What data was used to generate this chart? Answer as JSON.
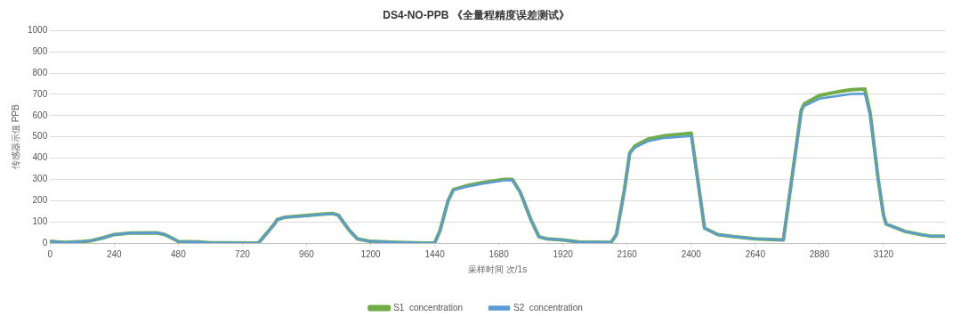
{
  "chart_data": {
    "type": "line",
    "title": "DS4-NO-PPB 《全量程精度误差测试》",
    "xlabel": "采样时间 次/1s",
    "ylabel": "传感器示值 PPB",
    "x": [
      0,
      30,
      60,
      120,
      150,
      200,
      240,
      300,
      400,
      430,
      470,
      480,
      560,
      600,
      780,
      800,
      840,
      850,
      880,
      960,
      1020,
      1060,
      1080,
      1120,
      1150,
      1200,
      1300,
      1410,
      1440,
      1460,
      1490,
      1510,
      1560,
      1620,
      1700,
      1730,
      1760,
      1800,
      1830,
      1860,
      1920,
      1980,
      2100,
      2120,
      2150,
      2170,
      2190,
      2240,
      2300,
      2380,
      2400,
      2450,
      2500,
      2560,
      2640,
      2745,
      2812,
      2823,
      2880,
      2960,
      3000,
      3050,
      3070,
      3100,
      3120,
      3130,
      3200,
      3260,
      3300,
      3345
    ],
    "series": [
      {
        "name": "S1  concentration",
        "color": "#70ad47",
        "values": [
          8,
          5,
          3,
          7,
          10,
          25,
          40,
          47,
          48,
          40,
          15,
          7,
          5,
          1,
          0,
          30,
          90,
          110,
          122,
          130,
          136,
          139,
          130,
          60,
          20,
          8,
          3,
          0,
          1,
          60,
          200,
          252,
          270,
          285,
          300,
          300,
          240,
          110,
          30,
          20,
          15,
          5,
          3,
          40,
          250,
          425,
          458,
          490,
          505,
          515,
          518,
          70,
          40,
          30,
          20,
          15,
          625,
          655,
          695,
          715,
          722,
          725,
          610,
          300,
          130,
          90,
          55,
          40,
          32,
          32
        ]
      },
      {
        "name": "S2  concentration",
        "color": "#5b9bd5",
        "values": [
          8,
          5,
          3,
          7,
          10,
          25,
          40,
          47,
          48,
          40,
          15,
          7,
          5,
          1,
          0,
          30,
          90,
          110,
          122,
          128,
          135,
          138,
          130,
          60,
          20,
          8,
          3,
          0,
          1,
          60,
          200,
          250,
          265,
          280,
          295,
          297,
          240,
          110,
          30,
          20,
          15,
          5,
          3,
          40,
          250,
          420,
          450,
          480,
          495,
          502,
          505,
          70,
          40,
          30,
          20,
          15,
          620,
          645,
          680,
          695,
          702,
          703,
          600,
          300,
          130,
          90,
          55,
          40,
          32,
          32
        ]
      }
    ],
    "xlim": [
      0,
      3350
    ],
    "xticks": [
      0,
      240,
      480,
      720,
      960,
      1200,
      1440,
      1680,
      1920,
      2160,
      2400,
      2640,
      2880,
      3120
    ],
    "ylim": [
      0,
      1000
    ],
    "yticks": [
      0,
      100,
      200,
      300,
      400,
      500,
      600,
      700,
      800,
      900,
      1000
    ],
    "grid": "y",
    "legend": "bottom",
    "marker": "none",
    "line_style": "solid"
  }
}
